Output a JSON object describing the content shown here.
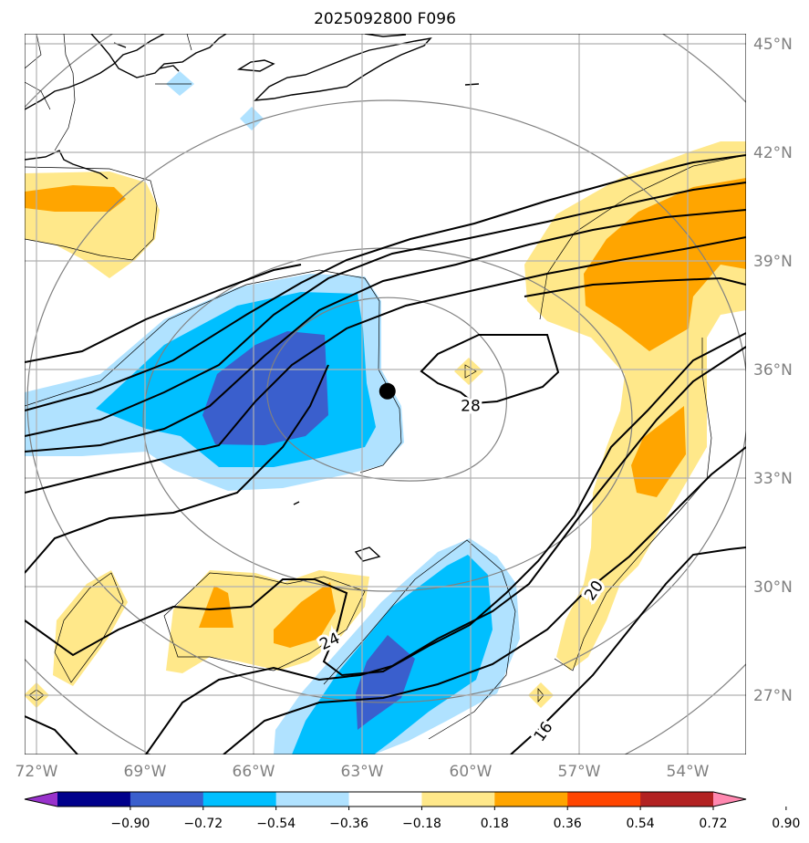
{
  "chart_data": {
    "type": "contour-map",
    "title": "2025092800 F096",
    "lon_ticks": [
      -72,
      -69,
      -66,
      -63,
      -60,
      -57,
      -54
    ],
    "lon_tick_labels": [
      "72°W",
      "69°W",
      "66°W",
      "63°W",
      "60°W",
      "57°W",
      "54°W"
    ],
    "lat_ticks": [
      27,
      30,
      33,
      36,
      39,
      42,
      45
    ],
    "lat_tick_labels": [
      "27°N",
      "30°N",
      "33°N",
      "36°N",
      "39°N",
      "42°N",
      "45°N"
    ],
    "lon_range": [
      -72,
      -52
    ],
    "lat_range": [
      25.5,
      45.3
    ],
    "grid": true,
    "storm_center": {
      "lon": -62.3,
      "lat": 35.4
    },
    "contour_labels": [
      {
        "text": "28",
        "lon": -60.0,
        "lat": 35.0
      },
      {
        "text": "24",
        "lon": -63.9,
        "lat": 28.5
      },
      {
        "text": "20",
        "lon": -56.6,
        "lat": 29.9
      },
      {
        "text": "16",
        "lon": -58.0,
        "lat": 26.0
      }
    ],
    "colorbar": {
      "tick_labels": [
        "−0.90",
        "−0.72",
        "−0.54",
        "−0.36",
        "−0.18",
        "0.18",
        "0.36",
        "0.54",
        "0.72",
        "0.90"
      ],
      "colors": [
        "#9932CC",
        "#00008B",
        "#3A5FCD",
        "#00BFFF",
        "#B0E2FF",
        "#FFFFFF",
        "#FFE88A",
        "#FFA500",
        "#FF4500",
        "#B22222",
        "#FF88B0"
      ],
      "extend": "both"
    }
  }
}
